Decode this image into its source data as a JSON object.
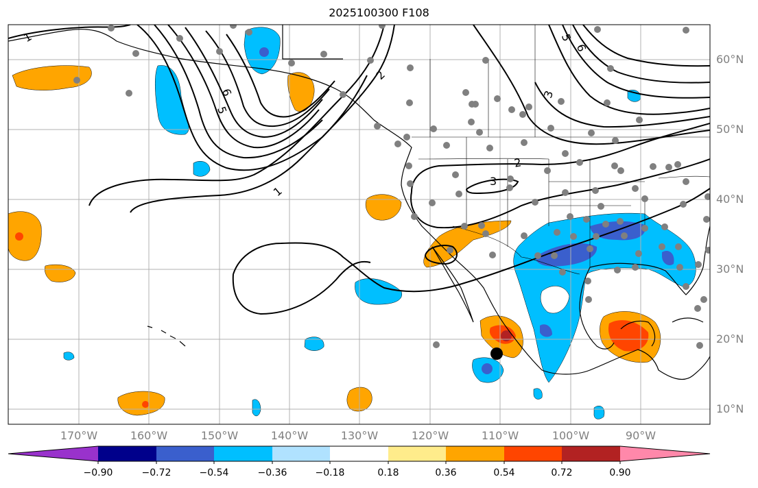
{
  "title": "2025100300 F108",
  "lat_labels": [
    {
      "text": "60°N",
      "lat": 60
    },
    {
      "text": "50°N",
      "lat": 50
    },
    {
      "text": "40°N",
      "lat": 40
    },
    {
      "text": "30°N",
      "lat": 30
    },
    {
      "text": "20°N",
      "lat": 20
    },
    {
      "text": "10°N",
      "lat": 10
    }
  ],
  "lon_labels": [
    {
      "text": "170°W",
      "lon": -170
    },
    {
      "text": "160°W",
      "lon": -160
    },
    {
      "text": "150°W",
      "lon": -150
    },
    {
      "text": "140°W",
      "lon": -140
    },
    {
      "text": "130°W",
      "lon": -130
    },
    {
      "text": "120°W",
      "lon": -120
    },
    {
      "text": "110°W",
      "lon": -110
    },
    {
      "text": "100°W",
      "lon": -100
    },
    {
      "text": "90°W",
      "lon": -90
    }
  ],
  "contour_labels": [
    "1",
    "2",
    "3",
    "5",
    "6"
  ],
  "colorbar": {
    "ticks": [
      "−0.90",
      "−0.72",
      "−0.54",
      "−0.36",
      "−0.18",
      "0.18",
      "0.36",
      "0.54",
      "0.72",
      "0.90"
    ],
    "colors": [
      "#9932cc",
      "#00008b",
      "#3a5fcd",
      "#00bfff",
      "#b0e2ff",
      "#ffffff",
      "#ffec8b",
      "#ffa500",
      "#ff4500",
      "#b22222",
      "#ff88aa"
    ]
  },
  "colors": {
    "light_blue": "#00bfff",
    "blue": "#3a5fcd",
    "orange": "#ffa500",
    "red_orange": "#ff4500",
    "dark_red": "#b22222",
    "station_dots": "#808080",
    "grid": "#b0b0b0"
  }
}
